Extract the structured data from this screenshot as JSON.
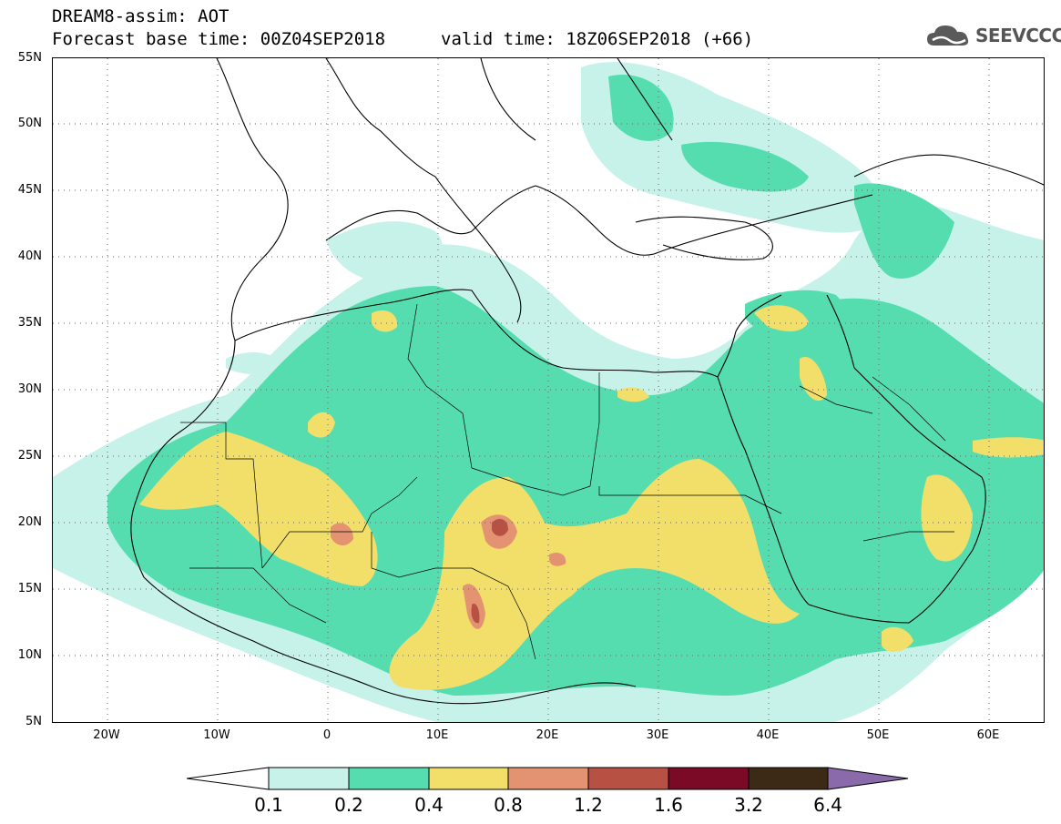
{
  "header": {
    "model_title": "DREAM8-assim: AOT",
    "forecast_base": "Forecast base time: 00Z04SEP2018",
    "valid_time": "valid time: 18Z06SEP2018 (+66)"
  },
  "logo": {
    "text": "SEEVCCC",
    "icon": "cloud-logo-icon"
  },
  "map": {
    "lat_labels": [
      "55N",
      "50N",
      "45N",
      "40N",
      "35N",
      "30N",
      "25N",
      "20N",
      "15N",
      "10N",
      "5N"
    ],
    "lon_labels": [
      "20W",
      "10W",
      "0",
      "10E",
      "20E",
      "30E",
      "40E",
      "50E",
      "60E"
    ],
    "lon_range": [
      -25,
      65
    ],
    "lat_range": [
      5,
      55
    ],
    "grid": "dotted",
    "dust_regions_note_colors": {
      "c01": "#c6f2ea",
      "c02": "#55ddb0",
      "c04": "#f2df6a",
      "c08": "#e39372",
      "c12": "#b65144",
      "c16": "#7a0a26"
    }
  },
  "colorbar": {
    "labels": [
      "0.1",
      "0.2",
      "0.4",
      "0.8",
      "1.2",
      "1.6",
      "3.2",
      "6.4"
    ],
    "colors": [
      "#ffffff",
      "#c6f2ea",
      "#55ddb0",
      "#f2df6a",
      "#e39372",
      "#b65144",
      "#7a0a26",
      "#3c2a16",
      "#8a6aaa"
    ]
  }
}
